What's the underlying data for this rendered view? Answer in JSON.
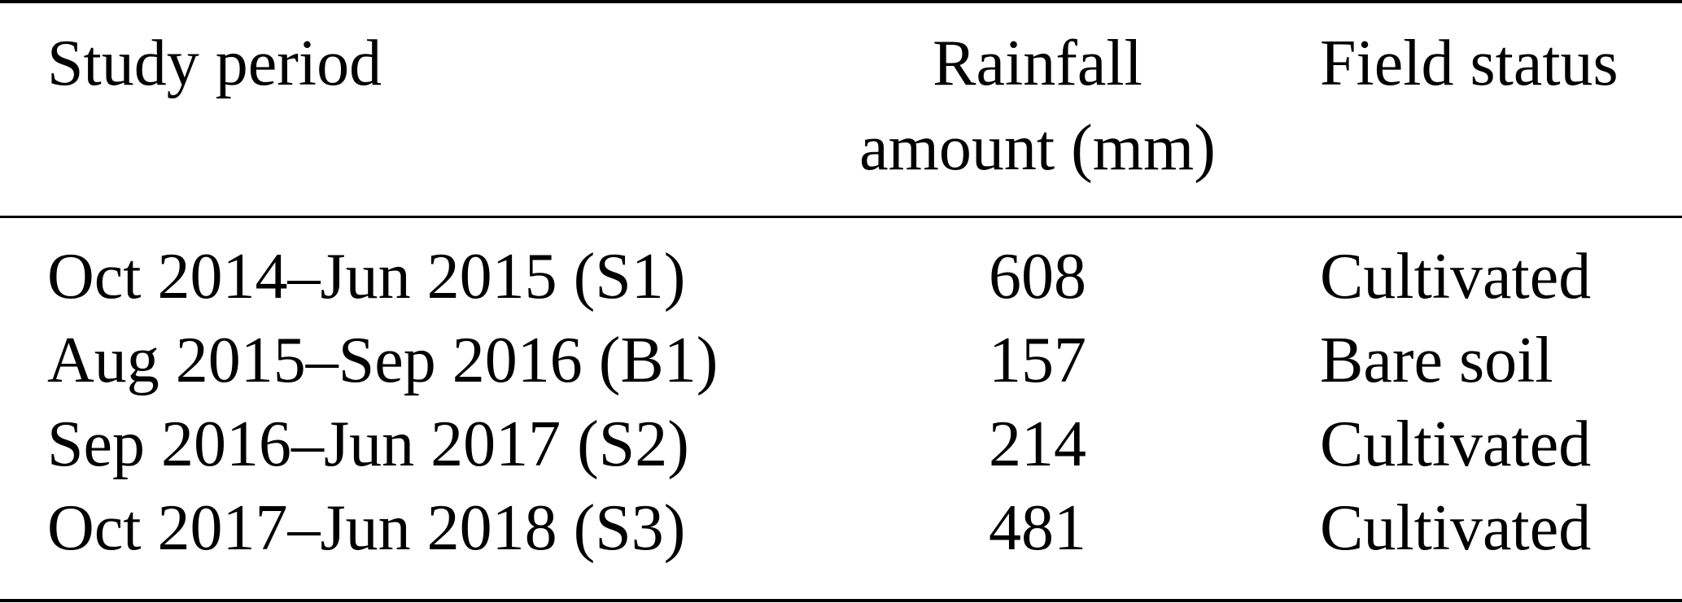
{
  "table": {
    "headers": {
      "period": "Study period",
      "rainfall_line1": "Rainfall",
      "rainfall_line2": "amount (mm)",
      "status": "Field status"
    },
    "rows": [
      {
        "period": "Oct 2014–Jun 2015 (S1)",
        "rainfall": "608",
        "status": "Cultivated"
      },
      {
        "period": "Aug 2015–Sep 2016 (B1)",
        "rainfall": "157",
        "status": "Bare soil"
      },
      {
        "period": "Sep 2016–Jun 2017 (S2)",
        "rainfall": "214",
        "status": "Cultivated"
      },
      {
        "period": "Oct 2017–Jun 2018 (S3)",
        "rainfall": "481",
        "status": "Cultivated"
      }
    ]
  }
}
